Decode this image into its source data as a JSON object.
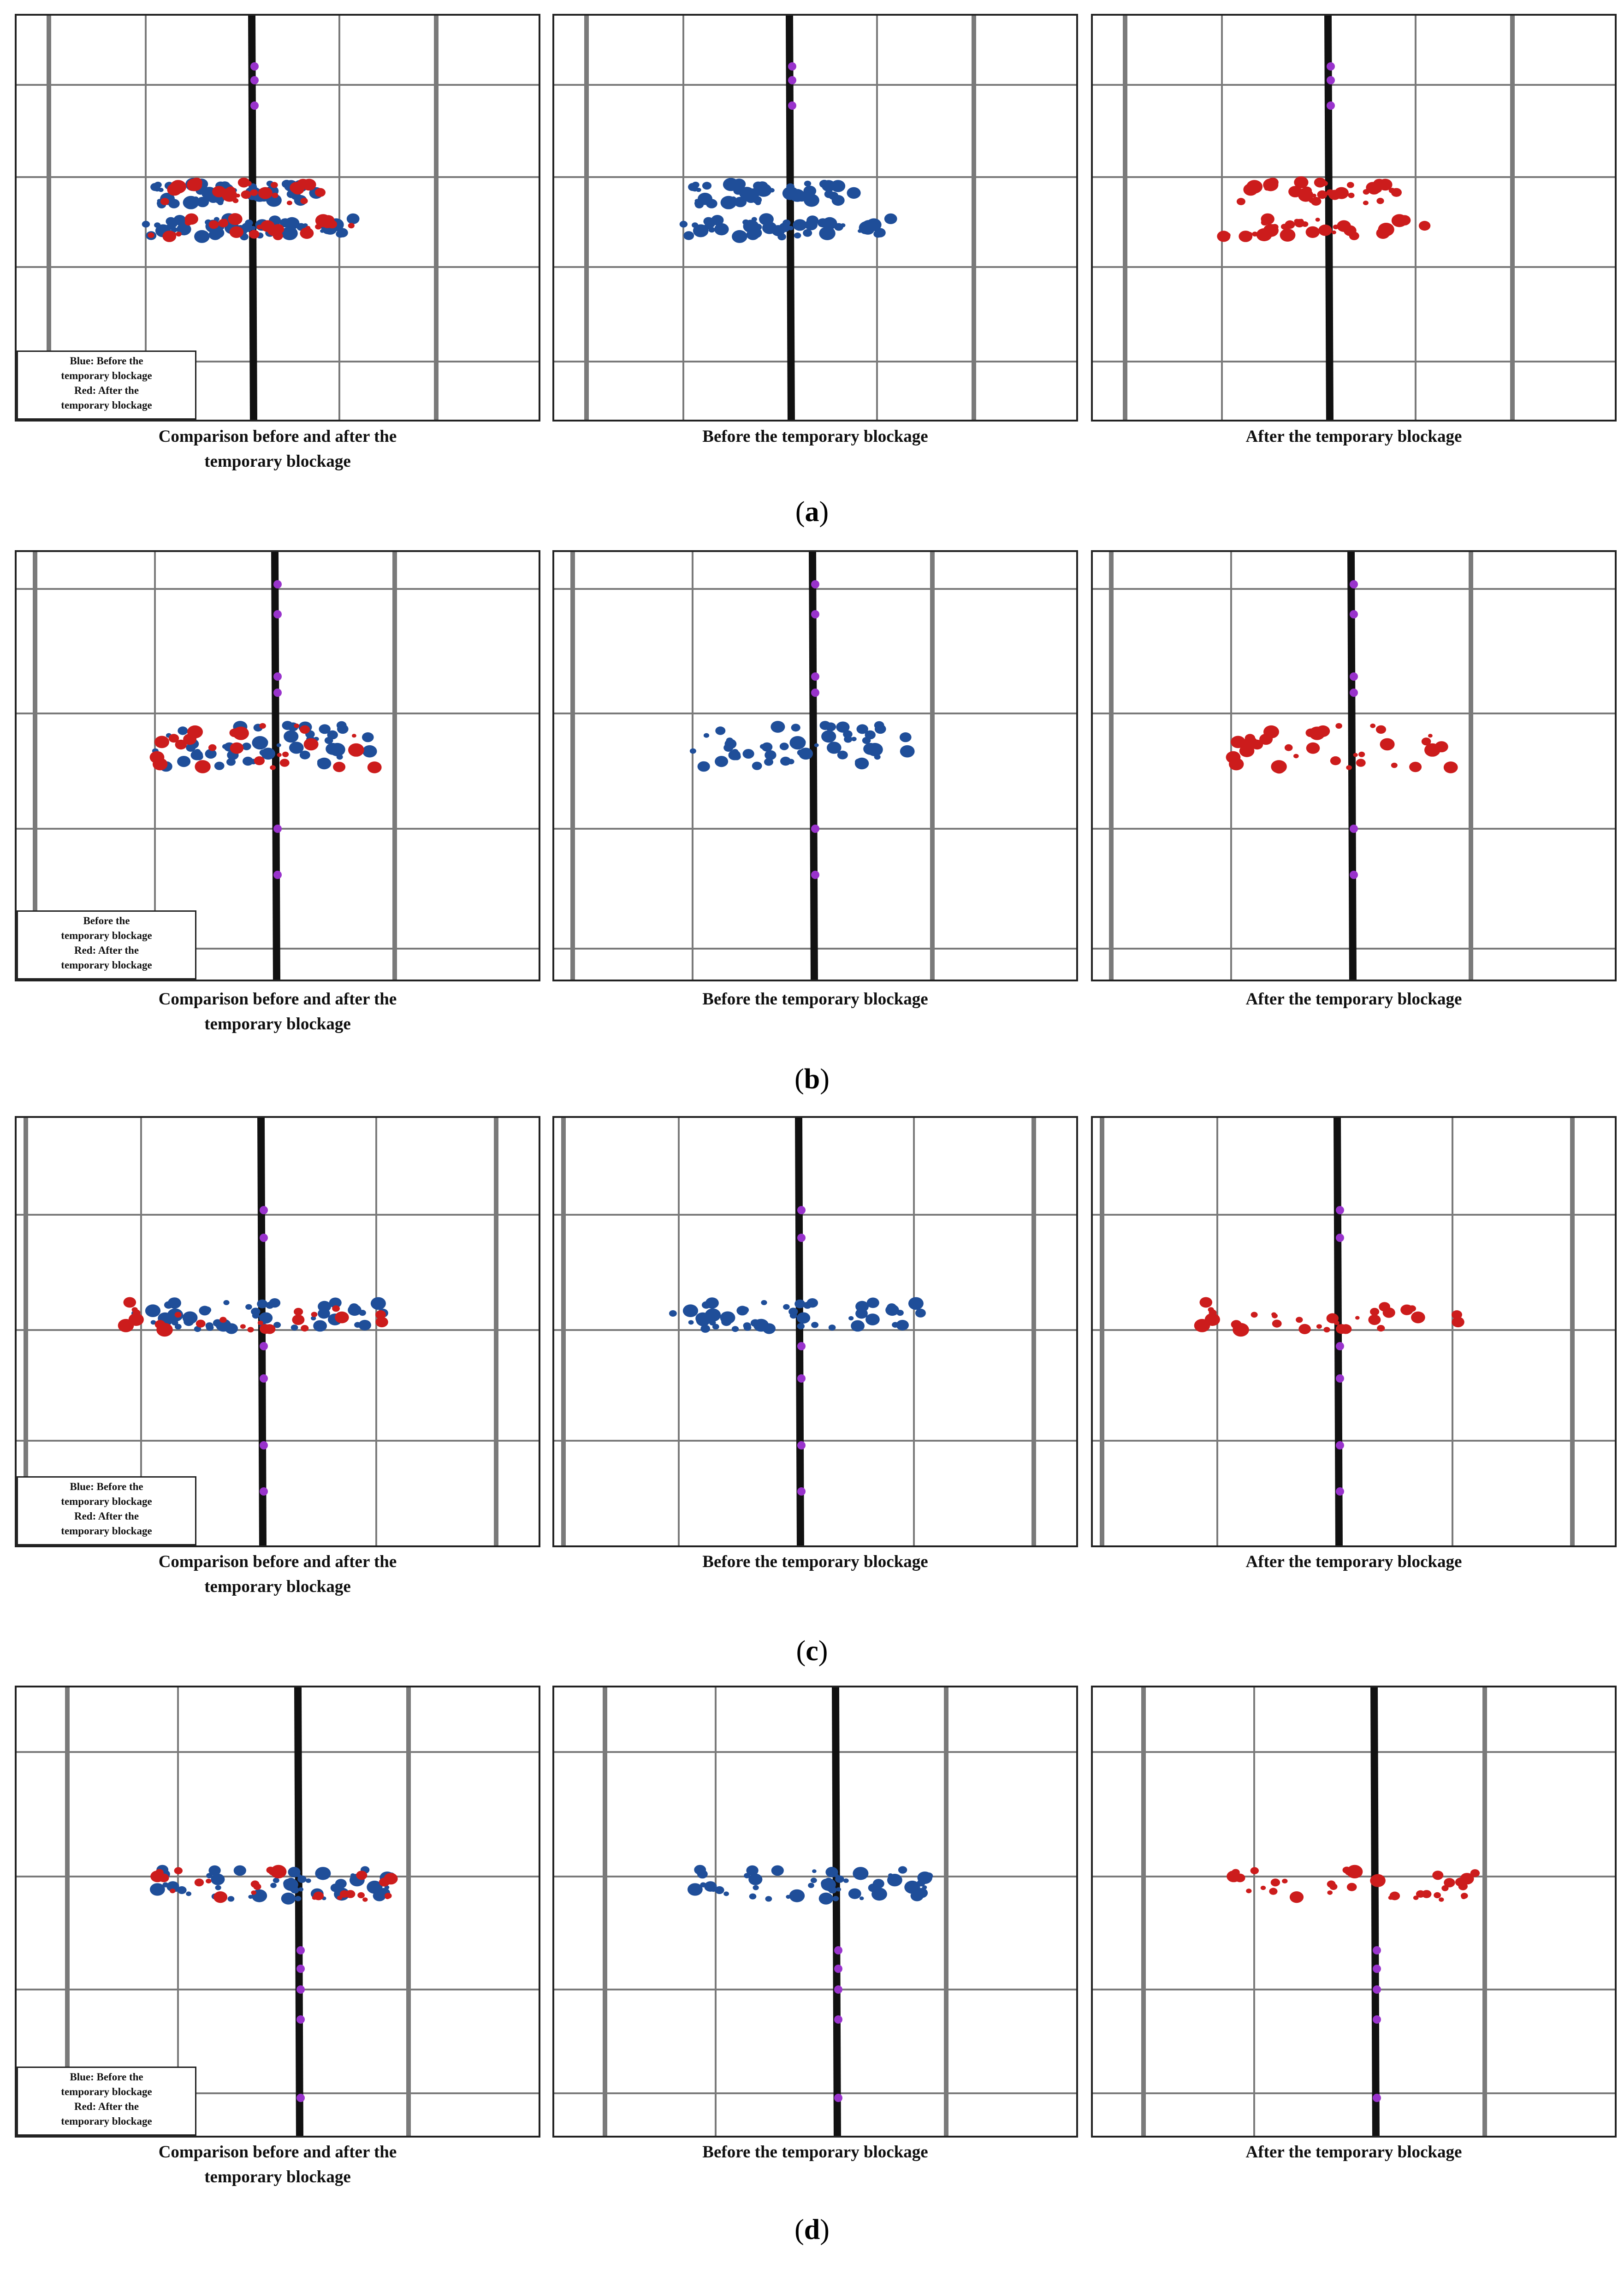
{
  "figure": {
    "rows": [
      {
        "label": "a",
        "panels": [
          {
            "caption": "Comparison before and after the temporary blockage",
            "content": "both"
          },
          {
            "caption": "Before the temporary blockage",
            "content": "before"
          },
          {
            "caption": "After the temporary blockage",
            "content": "after"
          }
        ],
        "legend": [
          "Blue: Before the",
          "temporary blockage",
          "Red: After the",
          "temporary blockage"
        ]
      },
      {
        "label": "b",
        "panels": [
          {
            "caption": "Comparison before and after the temporary blockage",
            "content": "both"
          },
          {
            "caption": "Before the temporary blockage",
            "content": "before"
          },
          {
            "caption": "After the temporary blockage",
            "content": "after"
          }
        ],
        "legend": [
          "Before the",
          "temporary blockage",
          "Red: After the",
          "temporary blockage"
        ]
      },
      {
        "label": "c",
        "panels": [
          {
            "caption": "Comparison before and after the temporary blockage",
            "content": "both"
          },
          {
            "caption": "Before the temporary blockage",
            "content": "before"
          },
          {
            "caption": "After the temporary blockage",
            "content": "after"
          }
        ],
        "legend": [
          "Blue: Before the",
          "temporary blockage",
          "Red: After the",
          "temporary blockage"
        ]
      },
      {
        "label": "d",
        "panels": [
          {
            "caption": "Comparison before and after the temporary blockage",
            "content": "both"
          },
          {
            "caption": "Before the temporary blockage",
            "content": "before"
          },
          {
            "caption": "After the temporary blockage",
            "content": "after"
          }
        ],
        "legend": [
          "Blue: Before the",
          "temporary blockage",
          "Red: After the",
          "temporary blockage"
        ]
      }
    ],
    "colors": {
      "before": "#1f4e99",
      "after": "#cc1c1c",
      "marker": "#9933cc",
      "road": "#111111",
      "grid": "#7a7a7a"
    }
  }
}
